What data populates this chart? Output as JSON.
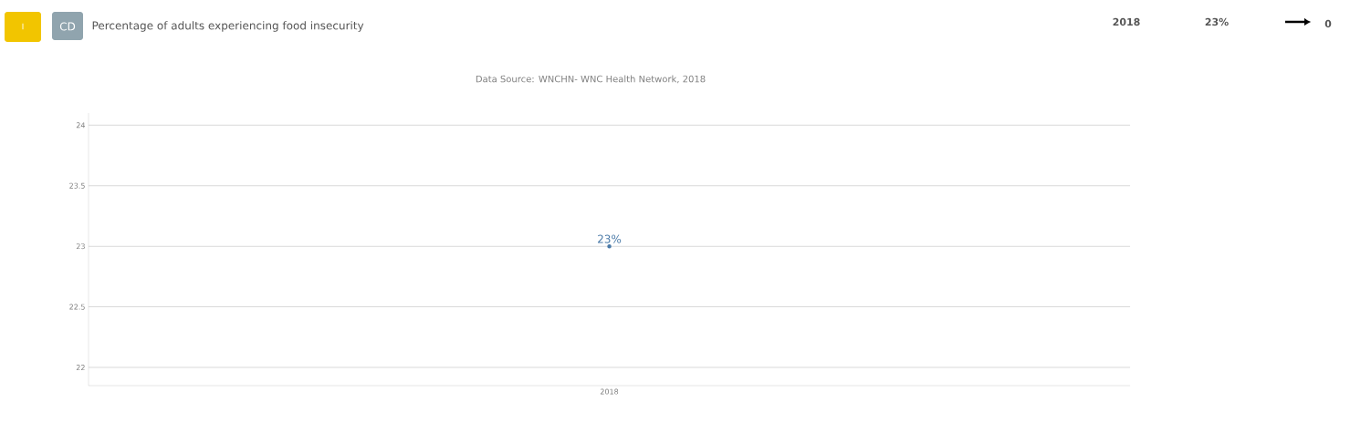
{
  "chart_data": {
    "type": "line",
    "title": "Percentage of adults experiencing food insecurity",
    "subtitle": "Data Source: WNCHN- WNC Health Network, 2018",
    "annotations": [
      "I",
      "CD",
      "2018",
      "23%",
      "0"
    ],
    "categories": [
      "2018"
    ],
    "series": [
      {
        "color": "#4a7aa8",
        "values": [
          23
        ],
        "value_labels": [
          "23%"
        ]
      }
    ],
    "ylim": [
      21.85,
      24.1
    ],
    "yticks": [
      22,
      22.5,
      23,
      23.5,
      24
    ],
    "grid": "y",
    "marker": "circle"
  }
}
